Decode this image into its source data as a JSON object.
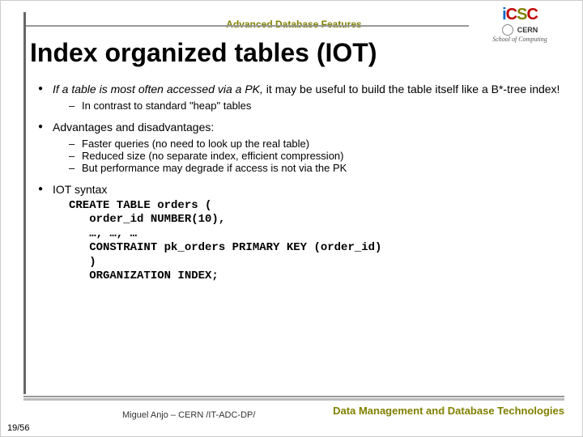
{
  "header": {
    "title": "Advanced Database Features"
  },
  "logo": {
    "cern": "CERN",
    "school": "School of Computing"
  },
  "slide": {
    "title": "Index organized tables (IOT)"
  },
  "bullets": {
    "b1_pre_italic": "If a table is most often accessed via a PK,",
    "b1_rest": " it may be useful to build the table itself like a B*-tree index!",
    "b1_sub1": "In contrast to standard \"heap\" tables",
    "b2": "Advantages and disadvantages:",
    "b2_sub1": "Faster queries (no need to look up the real table)",
    "b2_sub2": "Reduced size (no separate index, efficient compression)",
    "b2_sub3": "But performance may degrade if access is not via the PK",
    "b3": "IOT syntax"
  },
  "code": {
    "l1": "CREATE TABLE orders (",
    "l2": "   order_id NUMBER(10),",
    "l3": "   …, …, …",
    "l4": "   CONSTRAINT pk_orders PRIMARY KEY (order_id)",
    "l5": "   )",
    "l6": "   ORGANIZATION INDEX;"
  },
  "footer": {
    "page": "19/56",
    "author": "Miguel Anjo – CERN /IT-ADC-DP/",
    "right": "Data Management and Database Technologies"
  },
  "colors": {
    "olive": "#808000",
    "grey_rule": "#999999"
  }
}
